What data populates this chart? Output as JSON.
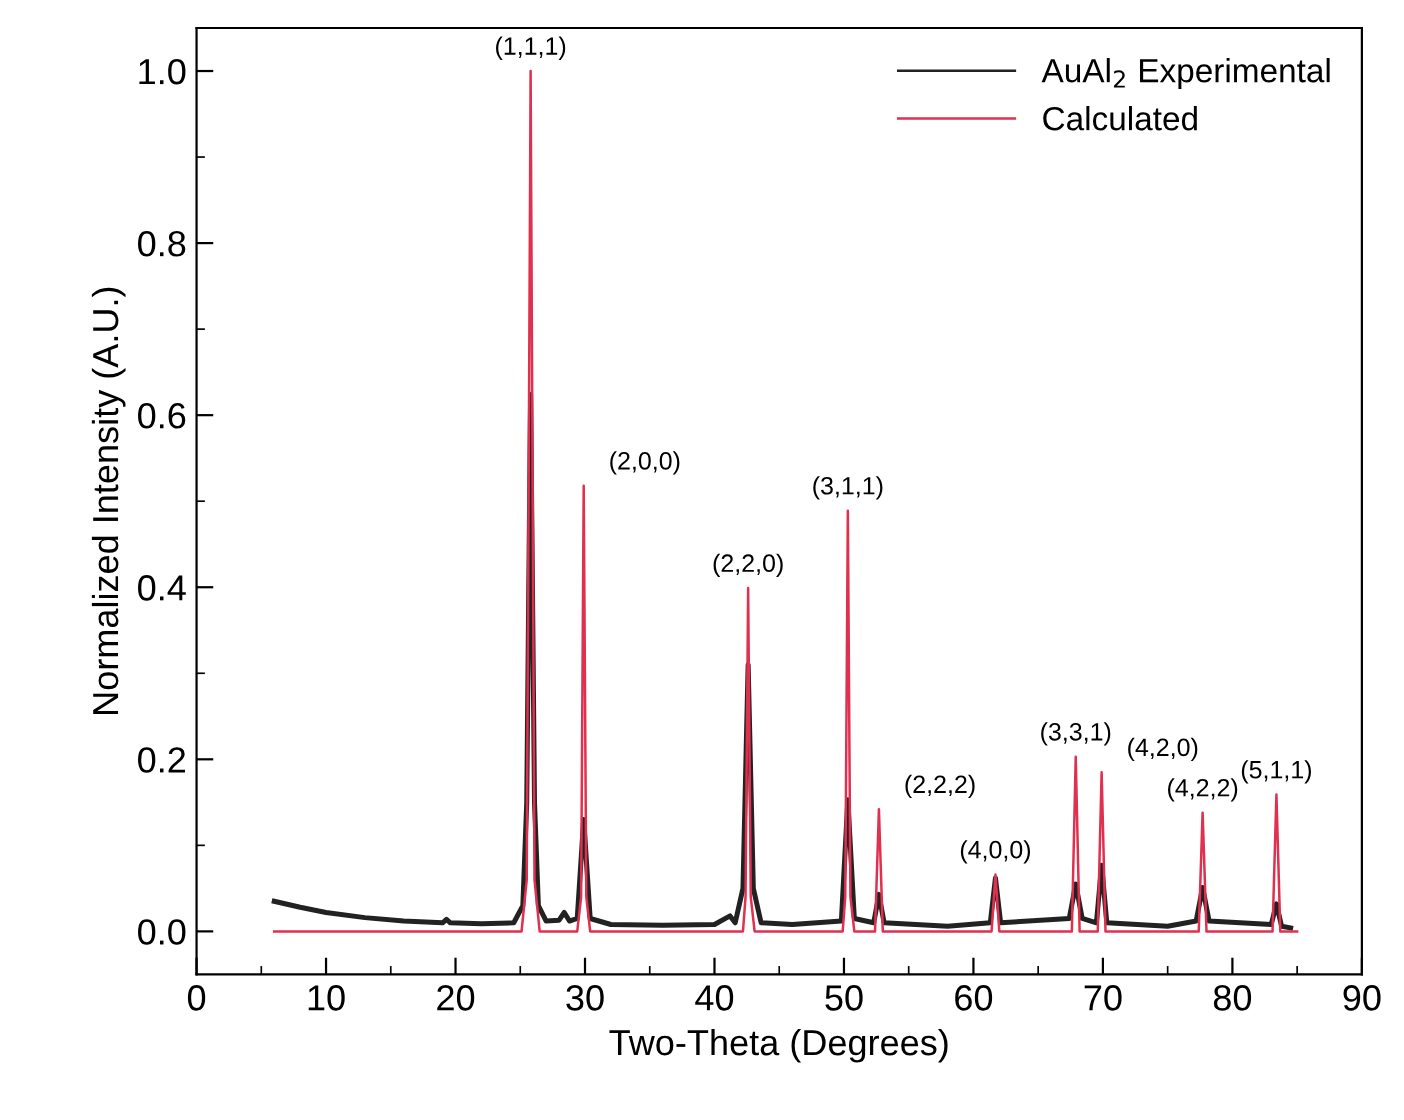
{
  "chart_data": {
    "type": "line",
    "xlabel": "Two-Theta (Degrees)",
    "ylabel": "Normalized Intensity (A.U.)",
    "xlim": [
      0,
      90
    ],
    "ylim": [
      -0.05,
      1.05
    ],
    "xticks": [
      0,
      10,
      20,
      30,
      40,
      50,
      60,
      70,
      80,
      90
    ],
    "yticks": [
      {
        "value": 0,
        "label": "0.0"
      },
      {
        "value": 0.2,
        "label": "0.2"
      },
      {
        "value": 0.4,
        "label": "0.4"
      },
      {
        "value": 0.6,
        "label": "0.6"
      },
      {
        "value": 0.8,
        "label": "0.8"
      },
      {
        "value": 1,
        "label": "1.0"
      }
    ],
    "grid": false,
    "legend": "top right",
    "marker": "none",
    "line_style": "solid",
    "series": [
      {
        "name": "AuAl$_{2}$ Experimental",
        "color": "#222222",
        "x": [
          6.0,
          8,
          10,
          13,
          16,
          19,
          19.3,
          19.6,
          22,
          24.5,
          25.2,
          25.5,
          25.8,
          26.1,
          26.4,
          27,
          28,
          28.4,
          28.8,
          29.4,
          29.9,
          30.4,
          32,
          36,
          40,
          41.2,
          41.6,
          42.2,
          42.6,
          43.0,
          43.6,
          46,
          49.8,
          50.3,
          50.8,
          52.3,
          52.7,
          53.1,
          58,
          61.3,
          61.7,
          62.1,
          67.4,
          67.9,
          68.4,
          69.5,
          69.9,
          70.3,
          75,
          77.2,
          77.7,
          78.2,
          83,
          83.4,
          83.8,
          84.5
        ],
        "values": [
          0.035,
          0.028,
          0.022,
          0.016,
          0.012,
          0.01,
          0.014,
          0.01,
          0.009,
          0.01,
          0.03,
          0.15,
          0.624,
          0.15,
          0.03,
          0.012,
          0.013,
          0.022,
          0.012,
          0.015,
          0.13,
          0.015,
          0.008,
          0.007,
          0.008,
          0.018,
          0.01,
          0.05,
          0.31,
          0.05,
          0.01,
          0.008,
          0.012,
          0.153,
          0.015,
          0.01,
          0.043,
          0.01,
          0.006,
          0.01,
          0.062,
          0.01,
          0.015,
          0.055,
          0.015,
          0.01,
          0.077,
          0.01,
          0.006,
          0.012,
          0.051,
          0.012,
          0.008,
          0.032,
          0.006,
          0.004
        ]
      },
      {
        "name": "Calculated",
        "color": "#e0304f",
        "x": [
          6,
          25.1,
          25.5,
          25.8,
          26.1,
          26.5,
          29.4,
          29.7,
          29.9,
          30.1,
          30.4,
          42.2,
          42.4,
          42.6,
          42.8,
          43.1,
          49.9,
          50.1,
          50.3,
          50.5,
          50.8,
          52.4,
          52.7,
          53.0,
          61.4,
          61.7,
          62.0,
          67.6,
          67.9,
          68.2,
          69.6,
          69.9,
          70.2,
          77.4,
          77.7,
          78.0,
          83.1,
          83.4,
          83.7,
          85
        ],
        "values": [
          0,
          0,
          0.06,
          1.0,
          0.06,
          0,
          0,
          0.04,
          0.518,
          0.04,
          0,
          0,
          0.04,
          0.399,
          0.04,
          0,
          0,
          0.04,
          0.489,
          0.04,
          0,
          0,
          0.142,
          0,
          0,
          0.066,
          0,
          0,
          0.203,
          0,
          0,
          0.185,
          0,
          0,
          0.138,
          0,
          0,
          0.159,
          0,
          0
        ]
      }
    ],
    "annotations": [
      {
        "text": "(1,1,1)",
        "x": 25.8,
        "y": 1.0
      },
      {
        "text": "(2,0,0)",
        "x": 29.9,
        "y": 0.518
      },
      {
        "text": "(2,2,0)",
        "x": 42.6,
        "y": 0.399
      },
      {
        "text": "(3,1,1)",
        "x": 50.3,
        "y": 0.489
      },
      {
        "text": "(2,2,2)",
        "x": 52.7,
        "y": 0.142
      },
      {
        "text": "(4,0,0)",
        "x": 61.7,
        "y": 0.066
      },
      {
        "text": "(3,3,1)",
        "x": 67.9,
        "y": 0.203
      },
      {
        "text": "(4,2,0)",
        "x": 69.9,
        "y": 0.185
      },
      {
        "text": "(4,2,2)",
        "x": 77.7,
        "y": 0.138
      },
      {
        "text": "(5,1,1)",
        "x": 83.4,
        "y": 0.159
      }
    ]
  }
}
